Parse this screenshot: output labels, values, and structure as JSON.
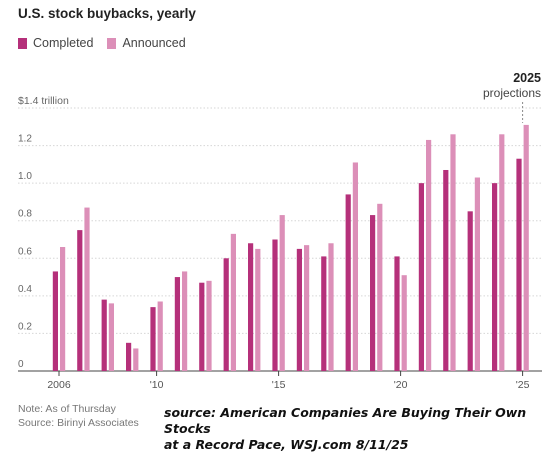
{
  "chart_data": {
    "type": "bar",
    "title": "U.S. stock buybacks, yearly",
    "legend": [
      {
        "name": "Completed",
        "color": "#b5307a"
      },
      {
        "name": "Announced",
        "color": "#dc8fb8"
      }
    ],
    "y_unit_label": "$1.4 trillion",
    "y_ticks": [
      {
        "value": 0,
        "label": "0"
      },
      {
        "value": 0.2,
        "label": "0.2"
      },
      {
        "value": 0.4,
        "label": "0.4"
      },
      {
        "value": 0.6,
        "label": "0.6"
      },
      {
        "value": 0.8,
        "label": "0.8"
      },
      {
        "value": 1.0,
        "label": "1.0"
      },
      {
        "value": 1.2,
        "label": "1.2"
      },
      {
        "value": 1.4,
        "label": "$1.4 trillion"
      }
    ],
    "ylim": [
      0,
      1.4
    ],
    "x_ticks": [
      {
        "year": 2006,
        "label": "2006"
      },
      {
        "year": 2010,
        "label": "'10"
      },
      {
        "year": 2015,
        "label": "'15"
      },
      {
        "year": 2020,
        "label": "'20"
      },
      {
        "year": 2025,
        "label": "'25"
      }
    ],
    "categories": [
      "2006",
      "2007",
      "2008",
      "2009",
      "2010",
      "2011",
      "2012",
      "2013",
      "2014",
      "2015",
      "2016",
      "2017",
      "2018",
      "2019",
      "2020",
      "2021",
      "2022",
      "2023",
      "2024",
      "2025"
    ],
    "series": [
      {
        "name": "Completed",
        "values": [
          0.53,
          0.75,
          0.38,
          0.15,
          0.34,
          0.5,
          0.47,
          0.6,
          0.68,
          0.7,
          0.65,
          0.61,
          0.94,
          0.83,
          0.61,
          1.0,
          1.07,
          0.85,
          1.0,
          1.13
        ]
      },
      {
        "name": "Announced",
        "values": [
          0.66,
          0.87,
          0.36,
          0.12,
          0.37,
          0.53,
          0.48,
          0.73,
          0.65,
          0.83,
          0.67,
          0.68,
          1.11,
          0.89,
          0.51,
          1.23,
          1.26,
          1.03,
          1.26,
          1.31
        ]
      }
    ],
    "annotation": {
      "year_label": "2025",
      "text": "projections"
    },
    "grid": true
  },
  "footer": {
    "note": "Note: As of Thursday",
    "source": "Source: Birinyi Associates"
  },
  "attribution": {
    "line1": "source: American Companies Are Buying Their Own Stocks",
    "line2": "at a Record Pace, WSJ.com 8/11/25"
  }
}
